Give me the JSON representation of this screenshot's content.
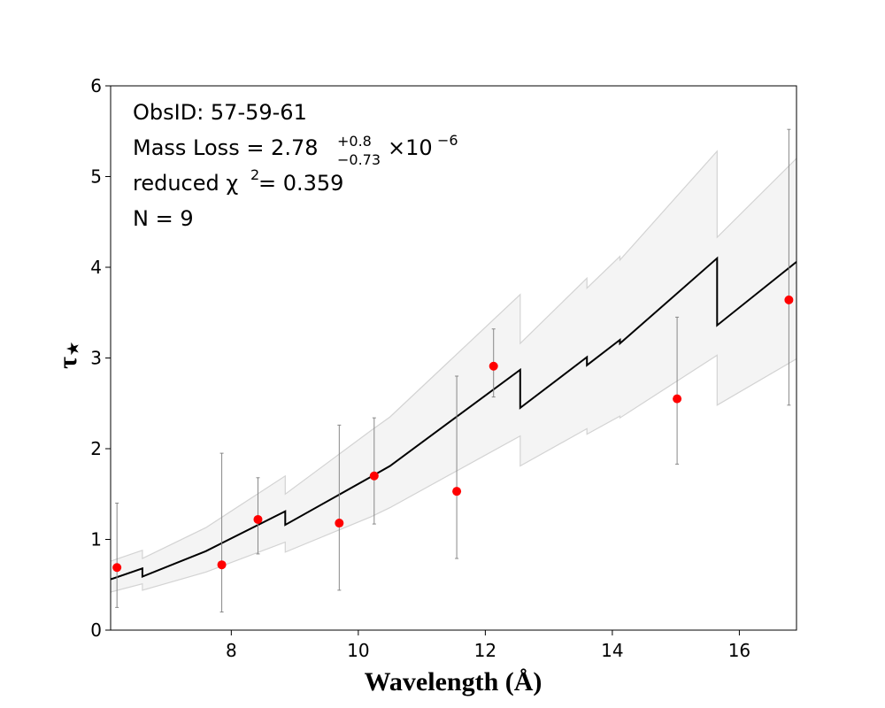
{
  "chart_data": {
    "type": "line",
    "xlabel": "Wavelength (Å)",
    "ylabel": "τ",
    "ylabel_subscript": "⋆",
    "xlim": [
      6.1,
      16.9
    ],
    "ylim": [
      0,
      6
    ],
    "xticks": [
      8,
      10,
      12,
      14,
      16
    ],
    "yticks": [
      0,
      1,
      2,
      3,
      4,
      5,
      6
    ],
    "xtick_labels": [
      "8",
      "10",
      "12",
      "14",
      "16"
    ],
    "ytick_labels": [
      "0",
      "1",
      "2",
      "3",
      "4",
      "5",
      "6"
    ],
    "grid": false,
    "annotation": {
      "obsid": "ObsID: 57-59-61",
      "mass_loss_prefix": "Mass Loss = 2.78",
      "mass_loss_sup": "+0.8",
      "mass_loss_sub": "−0.73",
      "mass_loss_exp_base": "×10",
      "mass_loss_exp": "−6",
      "chi_prefix": "reduced χ",
      "chi_sup": "2",
      "chi_suffix": " = 0.359",
      "n": "N = 9"
    },
    "model": {
      "color": "#000000",
      "x": [
        6.1,
        6.6,
        6.6,
        7.6,
        8.85,
        8.85,
        10.2,
        10.5,
        12.55,
        12.55,
        13.6,
        13.6,
        14.12,
        14.12,
        15.65,
        15.65,
        16.9
      ],
      "y": [
        0.56,
        0.68,
        0.59,
        0.87,
        1.31,
        1.16,
        1.69,
        1.81,
        2.87,
        2.45,
        3.01,
        2.92,
        3.2,
        3.16,
        4.1,
        3.36,
        4.06
      ]
    },
    "band": {
      "color": "#f4f4f4",
      "edge_color": "#d3d3d3",
      "upper_y": [
        0.76,
        0.88,
        0.79,
        1.13,
        1.7,
        1.5,
        2.2,
        2.35,
        3.7,
        3.16,
        3.88,
        3.77,
        4.12,
        4.08,
        5.28,
        4.33,
        5.2
      ],
      "lower_y": [
        0.42,
        0.51,
        0.44,
        0.64,
        0.97,
        0.86,
        1.25,
        1.35,
        2.14,
        1.81,
        2.22,
        2.16,
        2.36,
        2.34,
        3.03,
        2.48,
        2.99
      ]
    },
    "points": {
      "color": "#ff0000",
      "errorbar_color": "#888888",
      "x": [
        6.2,
        7.85,
        8.42,
        9.7,
        10.25,
        11.55,
        12.13,
        15.02,
        16.78
      ],
      "y": [
        0.69,
        0.72,
        1.22,
        1.18,
        1.7,
        1.53,
        2.91,
        2.55,
        3.64
      ],
      "y_low": [
        0.25,
        0.2,
        0.84,
        0.44,
        1.17,
        0.79,
        2.57,
        1.83,
        2.48
      ],
      "y_high": [
        1.4,
        1.95,
        1.68,
        2.26,
        2.34,
        2.8,
        3.32,
        3.45,
        5.52
      ]
    }
  }
}
